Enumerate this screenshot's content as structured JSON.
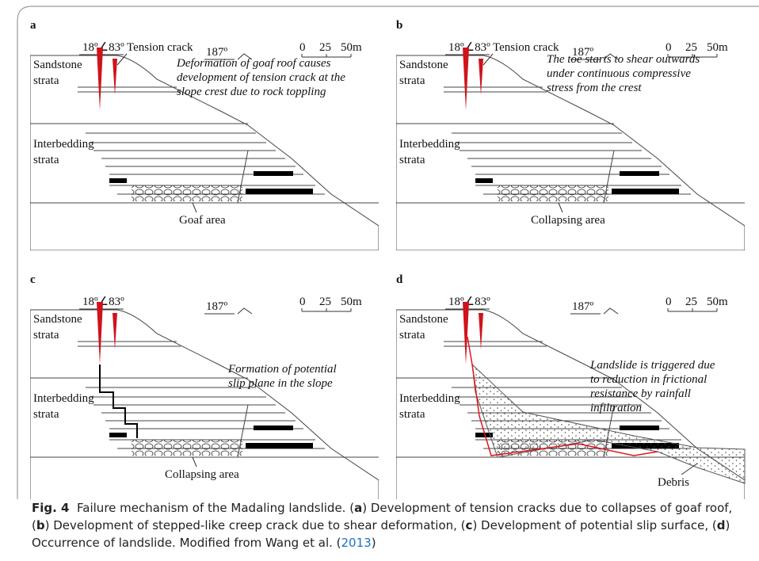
{
  "panels": [
    {
      "label": "a",
      "angle": "18º∠83º",
      "tension_crack": "Tension crack",
      "bearing": "187º",
      "scale": [
        "0",
        "25",
        "50m"
      ],
      "sandstone": [
        "Sandstone",
        "strata"
      ],
      "description": [
        "Deformation of goaf roof causes",
        "development of tension crack at the",
        "slope crest due to rock toppling"
      ],
      "interbedding": [
        "Interbedding",
        "strata"
      ],
      "area": "Goaf area"
    },
    {
      "label": "b",
      "angle": "18º∠83º",
      "tension_crack": "Tension crack",
      "bearing": "187º",
      "scale": [
        "0",
        "25",
        "50m"
      ],
      "sandstone": [
        "Sandstone",
        "strata"
      ],
      "description": [
        "The toe starts to shear outwards",
        "under continuous compressive",
        "stress from the crest"
      ],
      "interbedding": [
        "Interbedding",
        "strata"
      ],
      "area": "Collapsing area"
    },
    {
      "label": "c",
      "angle": "18º∠83º",
      "bearing": "187º",
      "scale": [
        "0",
        "25",
        "50m"
      ],
      "sandstone": [
        "Sandstone",
        "strata"
      ],
      "description": [
        "Formation of potential",
        "slip plane in the slope"
      ],
      "interbedding": [
        "Interbedding",
        "strata"
      ],
      "area": "Collapsing area"
    },
    {
      "label": "d",
      "angle": "18º∠83º",
      "bearing": "187º",
      "scale": [
        "0",
        "25",
        "50m"
      ],
      "sandstone": [
        "Sandstone",
        "strata"
      ],
      "description": [
        "Landslide is triggered due",
        "to reduction in frictional",
        "resistance by rainfall",
        "infiltration"
      ],
      "interbedding": [
        "Interbedding",
        "strata"
      ],
      "area": "Debris"
    }
  ],
  "caption": {
    "label": "Fig. 4",
    "parts": [
      "Failure mechanism of the Madaling landslide. (",
      "a",
      ") Development of tension cracks due to collapses of goaf roof, (",
      "b",
      ") Development of stepped-like creep crack due to shear deformation, (",
      "c",
      ") Development of potential slip surface, (",
      "d",
      ") Occurrence of landslide. Modified from Wang et al. ("
    ],
    "citation": "2013",
    "end": ")"
  }
}
